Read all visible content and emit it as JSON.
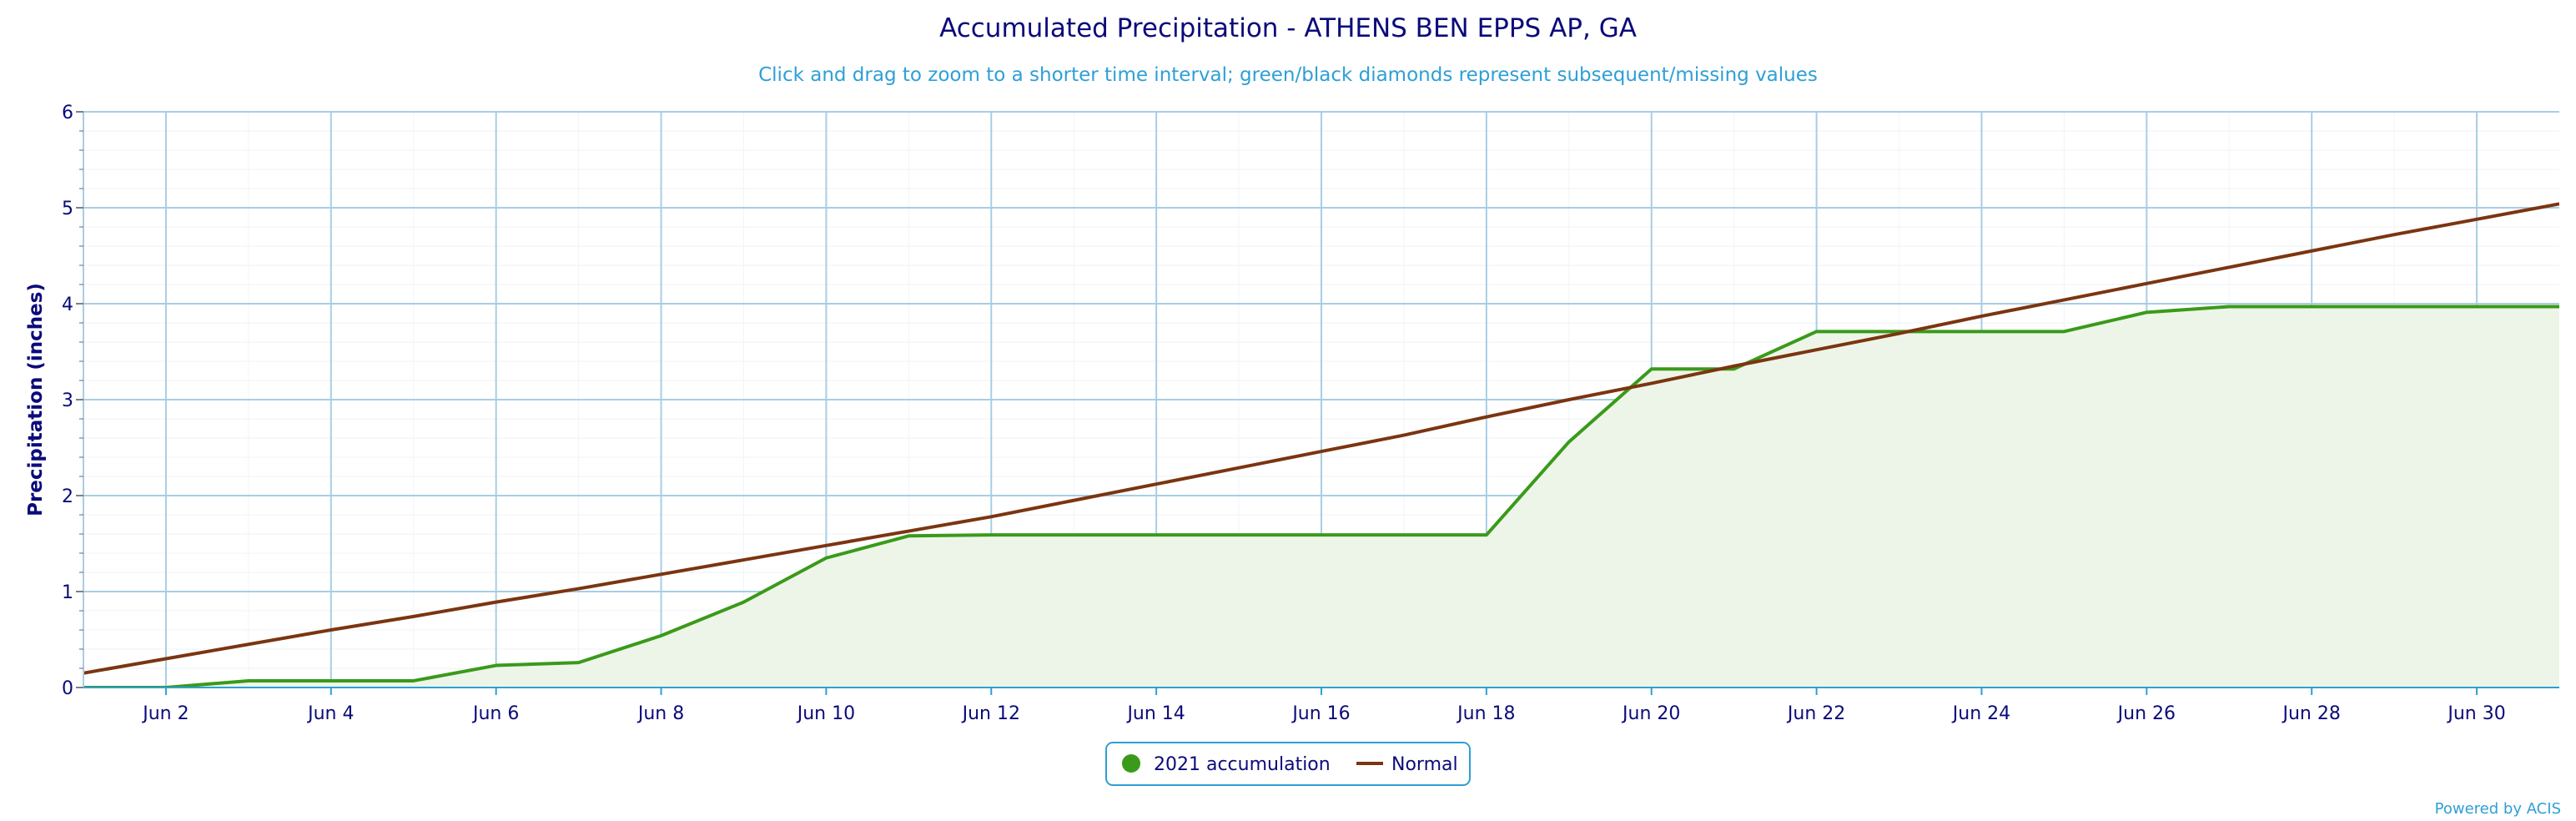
{
  "chart_data": {
    "type": "line",
    "title": "Accumulated Precipitation - ATHENS BEN EPPS AP, GA",
    "subtitle": "Click and drag to zoom to a shorter time interval; green/black diamonds represent subsequent/missing values",
    "ylabel": "Precipitation (inches)",
    "xlabel": "",
    "xlim": [
      1,
      31
    ],
    "ylim": [
      0,
      6
    ],
    "y_ticks": [
      "0",
      "1",
      "2",
      "3",
      "4",
      "5",
      "6"
    ],
    "x_ticks": [
      {
        "day": 2,
        "label": "Jun 2"
      },
      {
        "day": 4,
        "label": "Jun 4"
      },
      {
        "day": 6,
        "label": "Jun 6"
      },
      {
        "day": 8,
        "label": "Jun 8"
      },
      {
        "day": 10,
        "label": "Jun 10"
      },
      {
        "day": 12,
        "label": "Jun 12"
      },
      {
        "day": 14,
        "label": "Jun 14"
      },
      {
        "day": 16,
        "label": "Jun 16"
      },
      {
        "day": 18,
        "label": "Jun 18"
      },
      {
        "day": 20,
        "label": "Jun 20"
      },
      {
        "day": 22,
        "label": "Jun 22"
      },
      {
        "day": 24,
        "label": "Jun 24"
      },
      {
        "day": 26,
        "label": "Jun 26"
      },
      {
        "day": 28,
        "label": "Jun 28"
      },
      {
        "day": 30,
        "label": "Jun 30"
      }
    ],
    "grid": true,
    "legend": "bottom-center",
    "series": [
      {
        "name": "2021 accumulation",
        "color": "#3a9a1a",
        "fill": "#edf5e8",
        "x": [
          1,
          2,
          3,
          4,
          5,
          6,
          7,
          8,
          9,
          10,
          11,
          12,
          13,
          14,
          15,
          16,
          17,
          18,
          19,
          20,
          21,
          22,
          23,
          24,
          25,
          26,
          27,
          28,
          29,
          30,
          31
        ],
        "y": [
          0.0,
          0.0,
          0.07,
          0.07,
          0.07,
          0.23,
          0.26,
          0.54,
          0.89,
          1.35,
          1.58,
          1.59,
          1.59,
          1.59,
          1.59,
          1.59,
          1.59,
          1.59,
          2.56,
          3.32,
          3.32,
          3.71,
          3.71,
          3.71,
          3.71,
          3.91,
          3.97,
          3.97,
          3.97,
          3.97,
          3.97
        ]
      },
      {
        "name": "Normal",
        "color": "#7b3510",
        "x": [
          1,
          2,
          3,
          4,
          5,
          6,
          7,
          8,
          9,
          10,
          11,
          12,
          13,
          14,
          15,
          16,
          17,
          18,
          19,
          20,
          21,
          22,
          23,
          24,
          25,
          26,
          27,
          28,
          29,
          30,
          31
        ],
        "y": [
          0.15,
          0.3,
          0.45,
          0.6,
          0.74,
          0.89,
          1.03,
          1.18,
          1.33,
          1.48,
          1.63,
          1.78,
          1.95,
          2.12,
          2.29,
          2.46,
          2.63,
          2.82,
          3.0,
          3.17,
          3.35,
          3.52,
          3.69,
          3.87,
          4.04,
          4.21,
          4.38,
          4.55,
          4.72,
          4.88,
          5.04
        ]
      }
    ]
  },
  "credit": "Powered by ACIS"
}
